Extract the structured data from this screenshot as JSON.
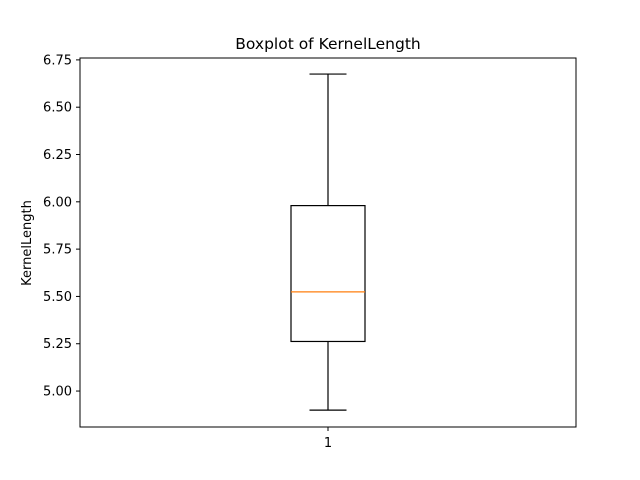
{
  "chart_data": {
    "type": "boxplot",
    "title": "Boxplot of KernelLength",
    "xlabel": "",
    "ylabel": "KernelLength",
    "categories": [
      "1"
    ],
    "boxes": [
      {
        "category": "1",
        "whisker_low": 4.899,
        "q1": 5.262,
        "median": 5.524,
        "q3": 5.98,
        "whisker_high": 6.675
      }
    ],
    "ylim": [
      4.81,
      6.76
    ],
    "yticks": [
      5.0,
      5.25,
      5.5,
      5.75,
      6.0,
      6.25,
      6.5,
      6.75
    ],
    "ytick_labels": [
      "5.00",
      "5.25",
      "5.50",
      "5.75",
      "6.00",
      "6.25",
      "6.50",
      "6.75"
    ],
    "grid": false,
    "colors": {
      "box": "#000000",
      "median": "#ff7f0e",
      "whisker": "#000000",
      "frame": "#000000"
    }
  }
}
